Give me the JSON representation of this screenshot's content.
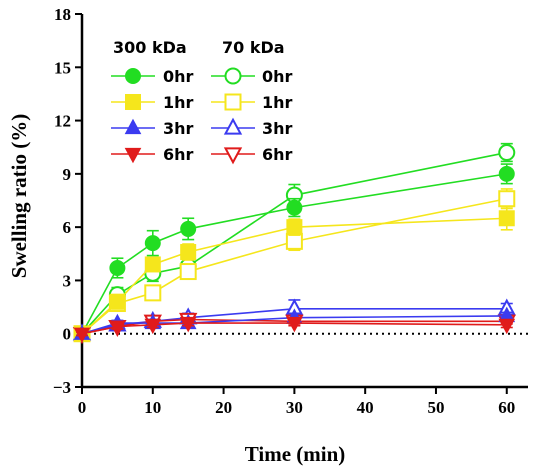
{
  "chart_data": {
    "type": "line",
    "xlabel": "Time (min)",
    "ylabel": "Swelling ratio (%)",
    "xlim": [
      0,
      63
    ],
    "ylim": [
      -3,
      18
    ],
    "xticks": [
      0,
      10,
      20,
      30,
      40,
      50,
      60
    ],
    "yticks": [
      -3,
      0,
      3,
      6,
      9,
      12,
      15,
      18
    ],
    "reference_line": {
      "y": 0,
      "style": "dotted"
    },
    "grid": false,
    "legend_placement": "top-left",
    "legend_groups": [
      "300 kDa",
      "70 kDa"
    ],
    "x": [
      0,
      5,
      10,
      15,
      30,
      60
    ],
    "series": [
      {
        "name": "0hr",
        "group": "300 kDa",
        "marker": "circle",
        "filled": true,
        "color": "#22dd22",
        "values": [
          0,
          3.7,
          5.1,
          5.9,
          7.1,
          9.0
        ],
        "errors": [
          0.15,
          0.55,
          0.7,
          0.6,
          0.5,
          0.55
        ]
      },
      {
        "name": "1hr",
        "group": "300 kDa",
        "marker": "square",
        "filled": true,
        "color": "#f5e61c",
        "values": [
          0,
          1.8,
          3.9,
          4.6,
          6.0,
          6.5
        ],
        "errors": [
          0.15,
          0.4,
          0.3,
          0.45,
          0.45,
          0.65
        ]
      },
      {
        "name": "3hr",
        "group": "300 kDa",
        "marker": "triangle-up",
        "filled": true,
        "color": "#3b3bf0",
        "values": [
          0,
          0.6,
          0.6,
          0.6,
          0.9,
          1.0
        ],
        "errors": [
          0.1,
          0.15,
          0.2,
          0.15,
          0.25,
          0.2
        ]
      },
      {
        "name": "6hr",
        "group": "300 kDa",
        "marker": "triangle-down",
        "filled": true,
        "color": "#e01b1b",
        "values": [
          0,
          0.4,
          0.5,
          0.6,
          0.6,
          0.5
        ],
        "errors": [
          0.1,
          0.1,
          0.15,
          0.15,
          0.15,
          0.15
        ]
      },
      {
        "name": "0hr",
        "group": "70 kDa",
        "marker": "circle",
        "filled": false,
        "color": "#22dd22",
        "values": [
          0,
          2.2,
          3.4,
          3.8,
          7.8,
          10.2
        ],
        "errors": [
          0.15,
          0.4,
          0.45,
          0.4,
          0.6,
          0.5
        ]
      },
      {
        "name": "1hr",
        "group": "70 kDa",
        "marker": "square",
        "filled": false,
        "color": "#f5e61c",
        "values": [
          0,
          1.7,
          2.3,
          3.5,
          5.2,
          7.6
        ],
        "errors": [
          0.15,
          0.35,
          0.35,
          0.4,
          0.5,
          0.55
        ]
      },
      {
        "name": "3hr",
        "group": "70 kDa",
        "marker": "triangle-up",
        "filled": false,
        "color": "#3b3bf0",
        "values": [
          0,
          0.5,
          0.7,
          0.9,
          1.4,
          1.4
        ],
        "errors": [
          0.1,
          0.2,
          0.2,
          0.25,
          0.5,
          0.3
        ]
      },
      {
        "name": "6hr",
        "group": "70 kDa",
        "marker": "triangle-down",
        "filled": false,
        "color": "#e01b1b",
        "values": [
          0,
          0.4,
          0.7,
          0.8,
          0.7,
          0.7
        ],
        "errors": [
          0.1,
          0.15,
          0.15,
          0.15,
          0.15,
          0.15
        ]
      }
    ]
  }
}
